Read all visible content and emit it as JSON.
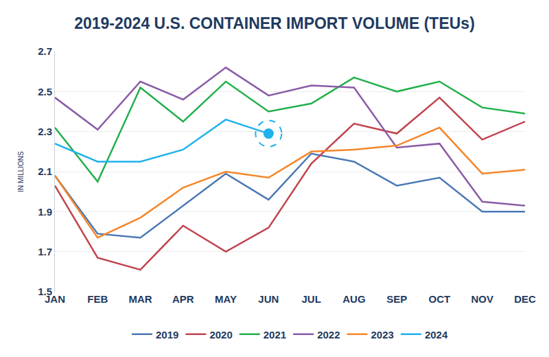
{
  "chart_data": {
    "type": "line",
    "title": "2019-2024 U.S. CONTAINER IMPORT VOLUME (TEUs)",
    "y_label": "IN MILLIONS",
    "categories": [
      "JAN",
      "FEB",
      "MAR",
      "APR",
      "MAY",
      "JUN",
      "JUL",
      "AUG",
      "SEP",
      "OCT",
      "NOV",
      "DEC"
    ],
    "series": [
      {
        "name": "2019",
        "color": "#4a78b5",
        "values": [
          2.08,
          1.79,
          1.77,
          1.93,
          2.09,
          1.96,
          2.19,
          2.15,
          2.03,
          2.07,
          1.9,
          1.9
        ]
      },
      {
        "name": "2020",
        "color": "#c0434d",
        "values": [
          2.03,
          1.67,
          1.61,
          1.83,
          1.7,
          1.82,
          2.14,
          2.34,
          2.29,
          2.47,
          2.26,
          2.35
        ]
      },
      {
        "name": "2021",
        "color": "#22b04b",
        "values": [
          2.32,
          2.05,
          2.52,
          2.35,
          2.55,
          2.4,
          2.44,
          2.57,
          2.5,
          2.55,
          2.42,
          2.39
        ]
      },
      {
        "name": "2022",
        "color": "#8a5ba6",
        "values": [
          2.47,
          2.31,
          2.55,
          2.46,
          2.62,
          2.48,
          2.53,
          2.52,
          2.22,
          2.24,
          1.95,
          1.93
        ]
      },
      {
        "name": "2023",
        "color": "#f5862a",
        "values": [
          2.08,
          1.77,
          1.87,
          2.02,
          2.1,
          2.07,
          2.2,
          2.21,
          2.23,
          2.32,
          2.09,
          2.11
        ]
      },
      {
        "name": "2024",
        "color": "#1fb1ec",
        "values": [
          2.24,
          2.15,
          2.15,
          2.21,
          2.36,
          2.29,
          null,
          null,
          null,
          null,
          null,
          null
        ]
      }
    ],
    "ylim": [
      1.5,
      2.7
    ],
    "yticks": [
      1.5,
      1.7,
      1.9,
      2.1,
      2.3,
      2.5,
      2.7
    ],
    "grid": true,
    "legend": "bottom"
  }
}
